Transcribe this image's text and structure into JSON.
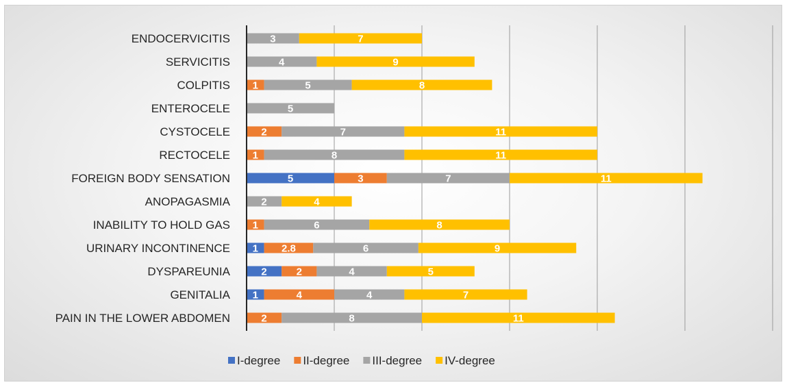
{
  "chart_data": {
    "type": "bar",
    "orientation": "horizontal",
    "stacked": true,
    "categories": [
      "ENDOCERVICITIS",
      "SERVICITIS",
      "COLPITIS",
      "ENTEROCELE",
      "CYSTOCELE",
      "RECTOCELE",
      "FOREIGN BODY SENSATION",
      "ANOPAGASMIA",
      "INABILITY TO HOLD GAS",
      "URINARY INCONTINENCE",
      "DYSPAREUNIA",
      "GENITALIA",
      "PAIN IN THE LOWER ABDOMEN"
    ],
    "series": [
      {
        "name": "I-degree",
        "color": "#4472c4",
        "values": [
          null,
          null,
          null,
          null,
          null,
          null,
          5,
          null,
          null,
          1,
          2,
          1,
          null
        ],
        "labels": [
          "",
          "",
          "",
          "",
          "",
          "",
          "5",
          "",
          "",
          "1",
          "2",
          "1",
          ""
        ]
      },
      {
        "name": "II-degree",
        "color": "#ed7d31",
        "values": [
          null,
          null,
          1,
          null,
          2,
          1,
          3,
          null,
          1,
          2.8,
          2,
          4,
          2
        ],
        "labels": [
          "",
          "",
          "1",
          "",
          "2",
          "1",
          "3",
          "",
          "1",
          "2.8",
          "2",
          "4",
          "2"
        ]
      },
      {
        "name": "III-degree",
        "color": "#a5a5a5",
        "values": [
          3,
          4,
          5,
          5,
          7,
          8,
          7,
          2,
          6,
          6,
          4,
          4,
          8
        ],
        "labels": [
          "3",
          "4",
          "5",
          "5",
          "7",
          "8",
          "7",
          "2",
          "6",
          "6",
          "4",
          "4",
          "8"
        ]
      },
      {
        "name": "IV-degree",
        "color": "#ffc000",
        "values": [
          7,
          9,
          8,
          null,
          11,
          11,
          11,
          4,
          8,
          9,
          5,
          7,
          11
        ],
        "labels": [
          "7",
          "9",
          "8",
          "",
          "11",
          "11",
          "11",
          "4",
          "8",
          "9",
          "5",
          "7",
          "11"
        ]
      }
    ],
    "xlim": [
      0,
      30
    ],
    "x_gridlines": [
      5,
      10,
      15,
      20,
      25,
      30
    ],
    "grid": true,
    "x_tick_labels_shown": false,
    "legend_position": "bottom",
    "title": "",
    "xlabel": "",
    "ylabel": ""
  }
}
